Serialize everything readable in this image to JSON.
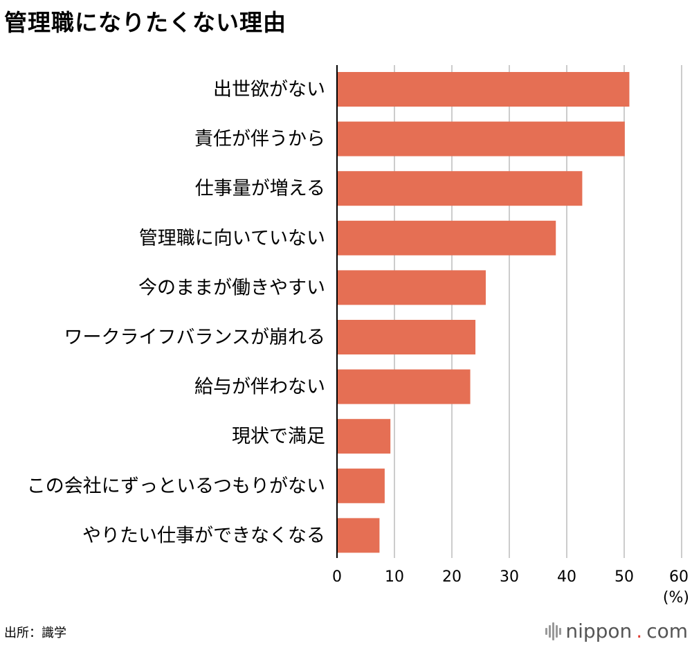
{
  "title": "管理職になりたくない理由",
  "source": "出所：識学",
  "logo": {
    "name": "nippon",
    "dot": ".",
    "tld": "com"
  },
  "colors": {
    "bar": "#E56F54",
    "grid": "#cccccc",
    "axis": "#000000"
  },
  "chart_data": {
    "type": "bar",
    "orientation": "horizontal",
    "categories": [
      "出世欲がない",
      "責任が伴うから",
      "仕事量が増える",
      "管理職に向いていない",
      "今のままが働きやすい",
      "ワークライフバランスが崩れる",
      "給与が伴わない",
      "現状で満足",
      "この会社にずっといるつもりがない",
      "やりたい仕事ができなくなる"
    ],
    "values": [
      50.9,
      50.1,
      42.7,
      38.1,
      25.9,
      24.1,
      23.2,
      9.3,
      8.3,
      7.4
    ],
    "xlim": [
      0,
      60
    ],
    "xticks": [
      0,
      10,
      20,
      30,
      40,
      50,
      60
    ],
    "unit": "(%)",
    "grid": true
  }
}
